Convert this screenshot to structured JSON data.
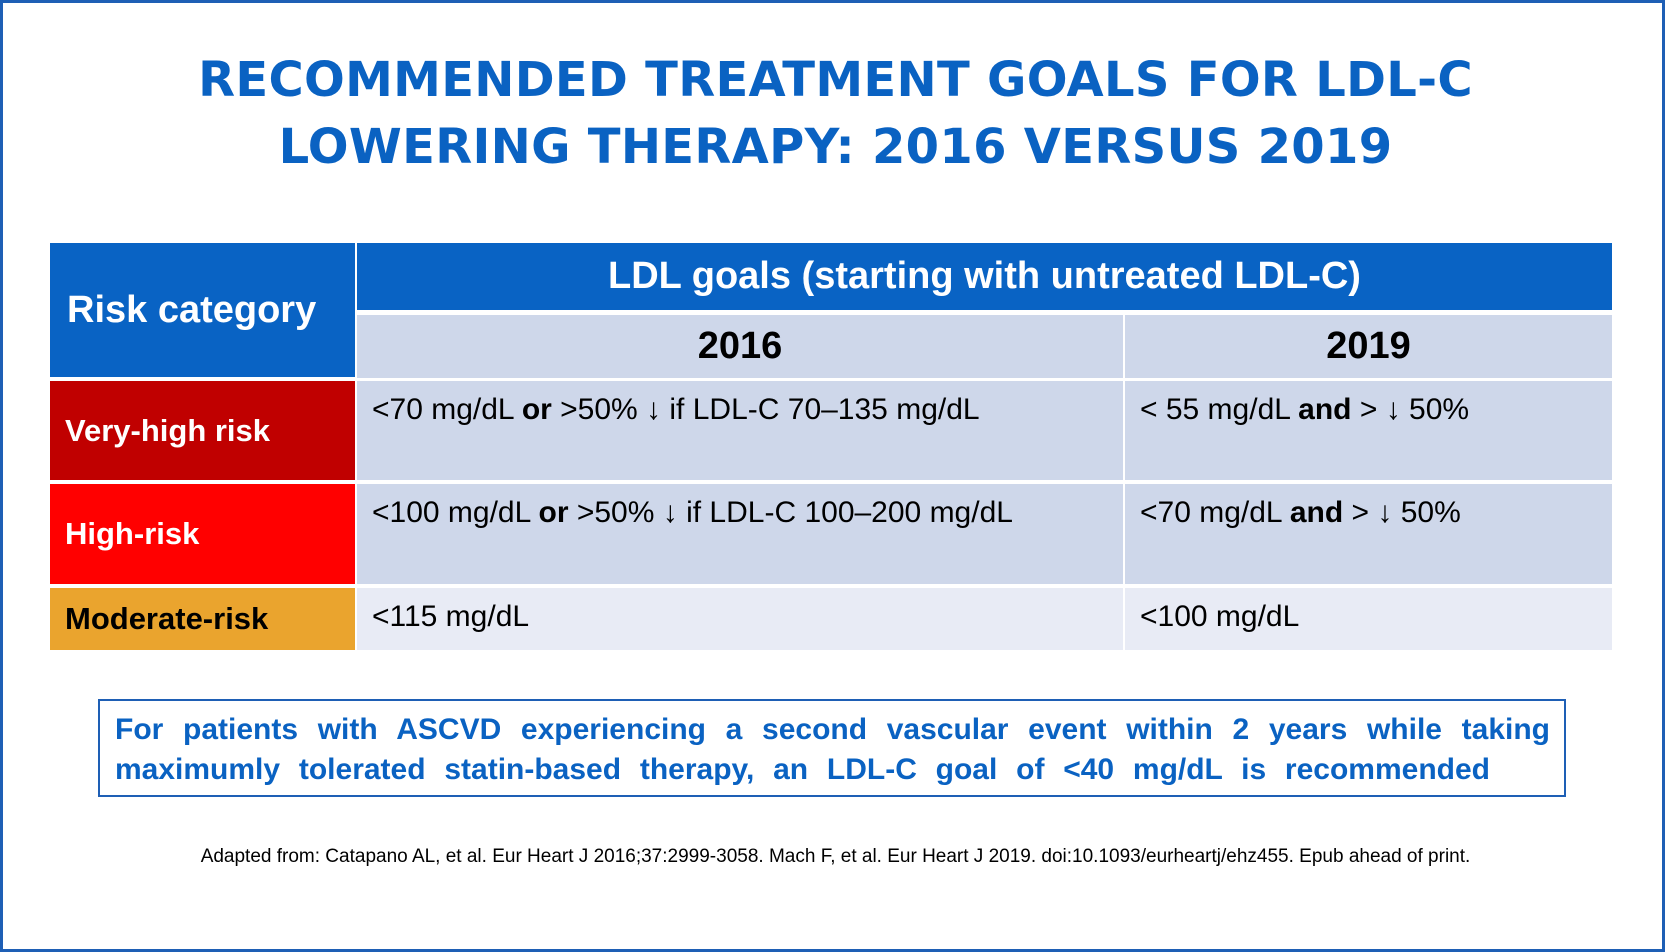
{
  "title": {
    "line1": "RECOMMENDED TREATMENT GOALS FOR LDL-C",
    "line2": "LOWERING THERAPY: 2016 VERSUS 2019"
  },
  "table": {
    "risk_header": "Risk category",
    "goals_header": "LDL goals (starting with untreated LDL-C)",
    "years": [
      "2016",
      "2019"
    ],
    "rows": [
      {
        "risk": "Very-high risk",
        "goal_2016": {
          "a": "<70 mg/dL ",
          "b": "or",
          "c": " >50% ↓ if LDL-C 70–135 mg/dL"
        },
        "goal_2019": {
          "a": "< 55 mg/dL ",
          "b": "and",
          "c": " > ↓ 50%"
        }
      },
      {
        "risk": "High-risk",
        "goal_2016": {
          "a": "<100 mg/dL ",
          "b": "or",
          "c": " >50% ↓ if LDL-C 100–200 mg/dL"
        },
        "goal_2019": {
          "a": "<70 mg/dL ",
          "b": "and",
          "c": " > ↓ 50%"
        }
      },
      {
        "risk": "Moderate-risk",
        "goal_2016": {
          "a": "<115 mg/dL"
        },
        "goal_2019": {
          "a": "<100 mg/dL"
        }
      }
    ]
  },
  "note": {
    "line1": "For patients with ASCVD experiencing a second vascular event within 2 years while taking",
    "line2": "maximumly tolerated statin-based therapy, an LDL-C goal of <40 mg/dL is recommended"
  },
  "source": "Adapted from: Catapano AL, et al. Eur Heart J 2016;37:2999-3058. Mach F, et al. Eur Heart J 2019. doi:10.1093/eurheartj/ehz455. Epub ahead of print.",
  "colors": {
    "title_blue": "#0A62C2",
    "header_blue": "#0963C4",
    "very_high_risk": "#C00000",
    "high_risk": "#FF0000",
    "moderate_risk": "#EAA42E",
    "cell_light": "#CED7EA",
    "cell_lighter": "#E8EBF5"
  }
}
